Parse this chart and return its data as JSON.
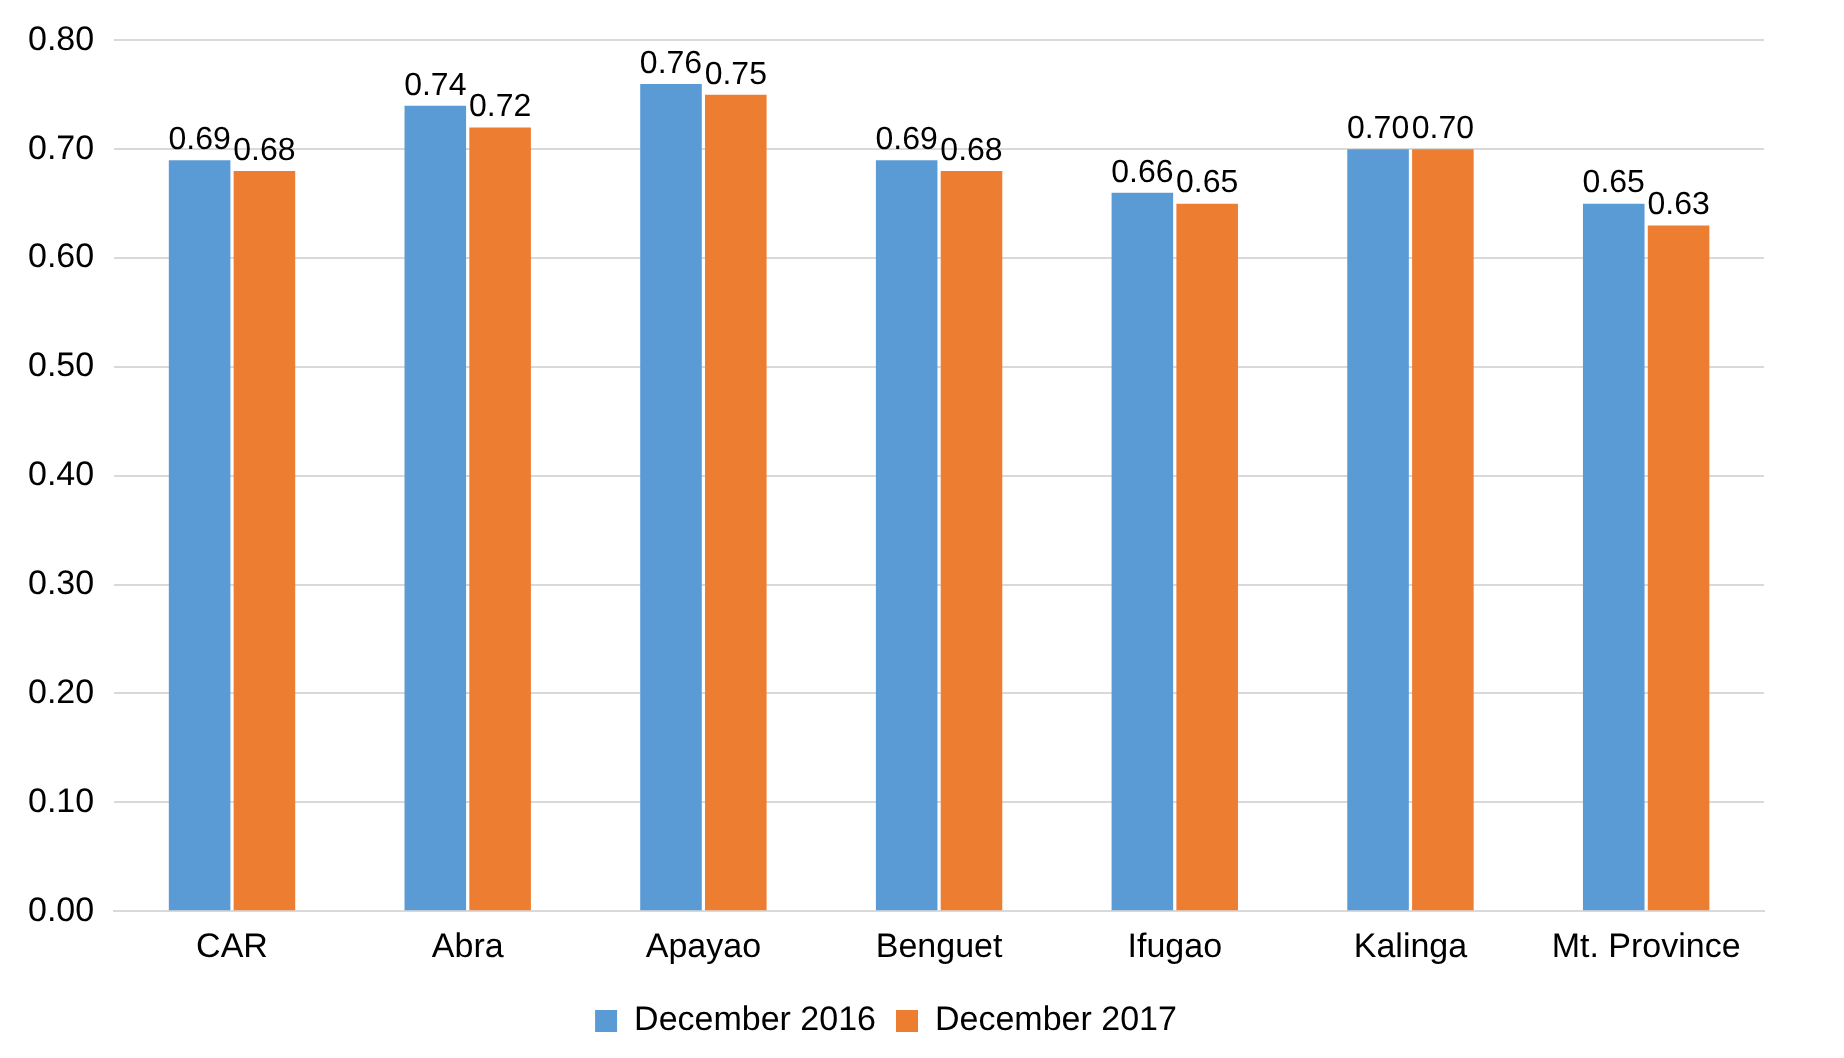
{
  "chart_data": {
    "type": "bar",
    "categories": [
      "CAR",
      "Abra",
      "Apayao",
      "Benguet",
      "Ifugao",
      "Kalinga",
      "Mt. Province"
    ],
    "series": [
      {
        "name": "December 2016",
        "color": "#5b9bd5",
        "values": [
          0.69,
          0.74,
          0.76,
          0.69,
          0.66,
          0.7,
          0.65
        ],
        "value_labels": [
          "0.69",
          "0.74",
          "0.76",
          "0.69",
          "0.66",
          "0.70",
          "0.65"
        ]
      },
      {
        "name": "December 2017",
        "color": "#ed7d31",
        "values": [
          0.68,
          0.72,
          0.75,
          0.68,
          0.65,
          0.7,
          0.63
        ],
        "value_labels": [
          "0.68",
          "0.72",
          "0.75",
          "0.68",
          "0.65",
          "0.70",
          "0.63"
        ]
      }
    ],
    "ylim": [
      0,
      0.8
    ],
    "yticks": [
      {
        "value": 0,
        "label": "0.00"
      },
      {
        "value": 0.1,
        "label": "0.10"
      },
      {
        "value": 0.2,
        "label": "0.20"
      },
      {
        "value": 0.3,
        "label": "0.30"
      },
      {
        "value": 0.4,
        "label": "0.40"
      },
      {
        "value": 0.5,
        "label": "0.50"
      },
      {
        "value": 0.6,
        "label": "0.60"
      },
      {
        "value": 0.7,
        "label": "0.70"
      },
      {
        "value": 0.8,
        "label": "0.80"
      }
    ],
    "grid": "y",
    "legend": "bottom"
  }
}
